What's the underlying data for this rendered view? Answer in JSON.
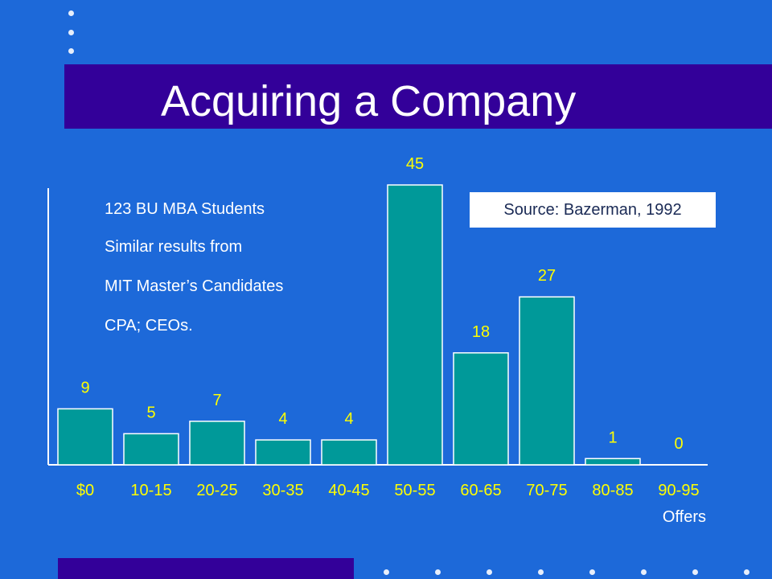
{
  "slide": {
    "title": "Acquiring a Company",
    "notes": [
      "123 BU MBA Students",
      "Similar results from",
      "MIT Master’s Candidates",
      "CPA; CEOs."
    ],
    "source": "Source: Bazerman, 1992"
  },
  "colors": {
    "background": "#1d69d9",
    "title_band": "#330099",
    "bar_fill": "#009999",
    "value_label": "#ffff00",
    "tick_label": "#ffff00",
    "axis": "#ffffff"
  },
  "chart_data": {
    "type": "bar",
    "categories": [
      "$0",
      "10-15",
      "20-25",
      "30-35",
      "40-45",
      "50-55",
      "60-65",
      "70-75",
      "80-85",
      "90-95"
    ],
    "values": [
      9,
      5,
      7,
      4,
      4,
      45,
      18,
      27,
      1,
      0
    ],
    "xlabel": "Offers",
    "ylabel": "",
    "ylim": [
      0,
      45
    ],
    "grid": false,
    "legend": "none"
  }
}
